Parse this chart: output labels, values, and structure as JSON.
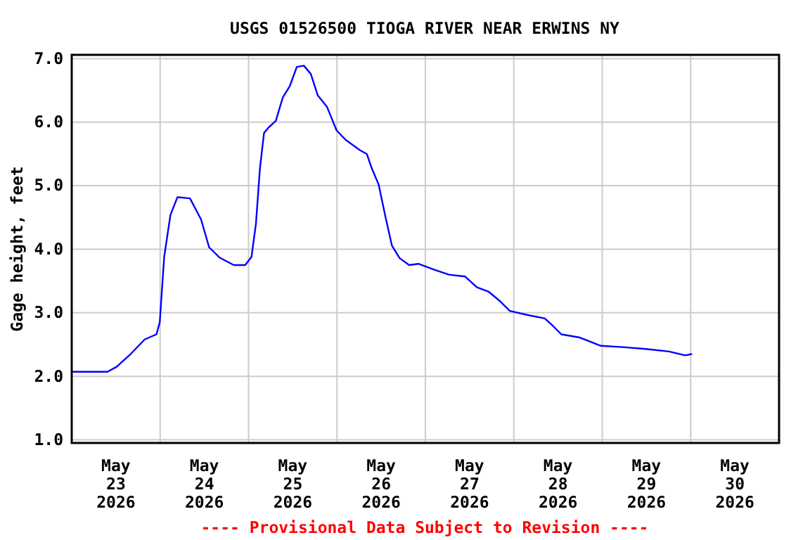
{
  "chart_data": {
    "type": "line",
    "title": "USGS 01526500 TIOGA RIVER NEAR ERWINS NY",
    "ylabel": "Gage height, feet",
    "annotations": [
      "---- Provisional Data Subject to Revision ----"
    ],
    "x": [
      "2026-05-23T00:00",
      "2026-05-23T09:42",
      "2026-05-23T12:12",
      "2026-05-23T16:00",
      "2026-05-23T19:48",
      "2026-05-23T23:00",
      "2026-05-23T23:54",
      "2026-05-24T01:06",
      "2026-05-24T02:48",
      "2026-05-24T04:42",
      "2026-05-24T08:06",
      "2026-05-24T11:06",
      "2026-05-24T13:18",
      "2026-05-24T16:06",
      "2026-05-24T20:00",
      "2026-05-24T23:06",
      "2026-05-25T00:48",
      "2026-05-25T02:00",
      "2026-05-25T03:06",
      "2026-05-25T04:12",
      "2026-05-25T05:30",
      "2026-05-25T07:24",
      "2026-05-25T09:18",
      "2026-05-25T11:12",
      "2026-05-25T13:06",
      "2026-05-25T15:00",
      "2026-05-25T16:54",
      "2026-05-25T18:48",
      "2026-05-25T21:18",
      "2026-05-25T23:54",
      "2026-05-26T02:24",
      "2026-05-26T06:12",
      "2026-05-26T08:06",
      "2026-05-26T09:24",
      "2026-05-26T11:18",
      "2026-05-26T13:12",
      "2026-05-26T14:54",
      "2026-05-26T17:00",
      "2026-05-26T19:36",
      "2026-05-26T22:06",
      "2026-05-27T02:18",
      "2026-05-27T06:24",
      "2026-05-27T10:48",
      "2026-05-27T14:00",
      "2026-05-27T17:12",
      "2026-05-27T20:18",
      "2026-05-27T22:54",
      "2026-05-28T03:18",
      "2026-05-28T08:24",
      "2026-05-28T10:18",
      "2026-05-28T12:54",
      "2026-05-28T17:54",
      "2026-05-28T20:30",
      "2026-05-28T23:36",
      "2026-05-29T05:24",
      "2026-05-29T11:42",
      "2026-05-29T18:06",
      "2026-05-29T22:30",
      "2026-05-30T00:24"
    ],
    "series": [
      {
        "color": "#0000ff",
        "values": [
          2.07,
          2.07,
          2.15,
          2.35,
          2.58,
          2.66,
          2.85,
          3.88,
          4.54,
          4.82,
          4.8,
          4.47,
          4.03,
          3.87,
          3.75,
          3.75,
          3.88,
          4.4,
          5.28,
          5.83,
          5.92,
          6.02,
          6.39,
          6.57,
          6.87,
          6.89,
          6.76,
          6.42,
          6.24,
          5.87,
          5.72,
          5.56,
          5.5,
          5.28,
          5.02,
          4.5,
          4.06,
          3.86,
          3.75,
          3.77,
          3.68,
          3.6,
          3.57,
          3.4,
          3.33,
          3.18,
          3.03,
          2.97,
          2.91,
          2.81,
          2.66,
          2.61,
          2.55,
          2.48,
          2.46,
          2.43,
          2.39,
          2.33,
          2.35
        ]
      }
    ],
    "xlim": [
      "2026-05-23T00:00",
      "2026-05-31T00:00"
    ],
    "xticks": [
      {
        "value": "2026-05-23T12:00",
        "label": "May\n23\n2026"
      },
      {
        "value": "2026-05-24T00:00",
        "label": null
      },
      {
        "value": "2026-05-24T12:00",
        "label": "May\n24\n2026"
      },
      {
        "value": "2026-05-25T00:00",
        "label": null
      },
      {
        "value": "2026-05-25T12:00",
        "label": "May\n25\n2026"
      },
      {
        "value": "2026-05-26T00:00",
        "label": null
      },
      {
        "value": "2026-05-26T12:00",
        "label": "May\n26\n2026"
      },
      {
        "value": "2026-05-27T00:00",
        "label": null
      },
      {
        "value": "2026-05-27T12:00",
        "label": "May\n27\n2026"
      },
      {
        "value": "2026-05-28T00:00",
        "label": null
      },
      {
        "value": "2026-05-28T12:00",
        "label": "May\n28\n2026"
      },
      {
        "value": "2026-05-29T00:00",
        "label": null
      },
      {
        "value": "2026-05-29T12:00",
        "label": "May\n29\n2026"
      },
      {
        "value": "2026-05-30T00:00",
        "label": null
      },
      {
        "value": "2026-05-30T12:00",
        "label": "May\n30\n2026"
      }
    ],
    "ylim": [
      0.95,
      7.06
    ],
    "yticks": [
      {
        "value": 1,
        "label": "1.0"
      },
      {
        "value": 2,
        "label": "2.0"
      },
      {
        "value": 3,
        "label": "3.0"
      },
      {
        "value": 4,
        "label": "4.0"
      },
      {
        "value": 5,
        "label": "5.0"
      },
      {
        "value": 6,
        "label": "6.0"
      },
      {
        "value": 7,
        "label": "7.0"
      }
    ],
    "grid": true,
    "marker": "none",
    "line_style": "solid"
  }
}
